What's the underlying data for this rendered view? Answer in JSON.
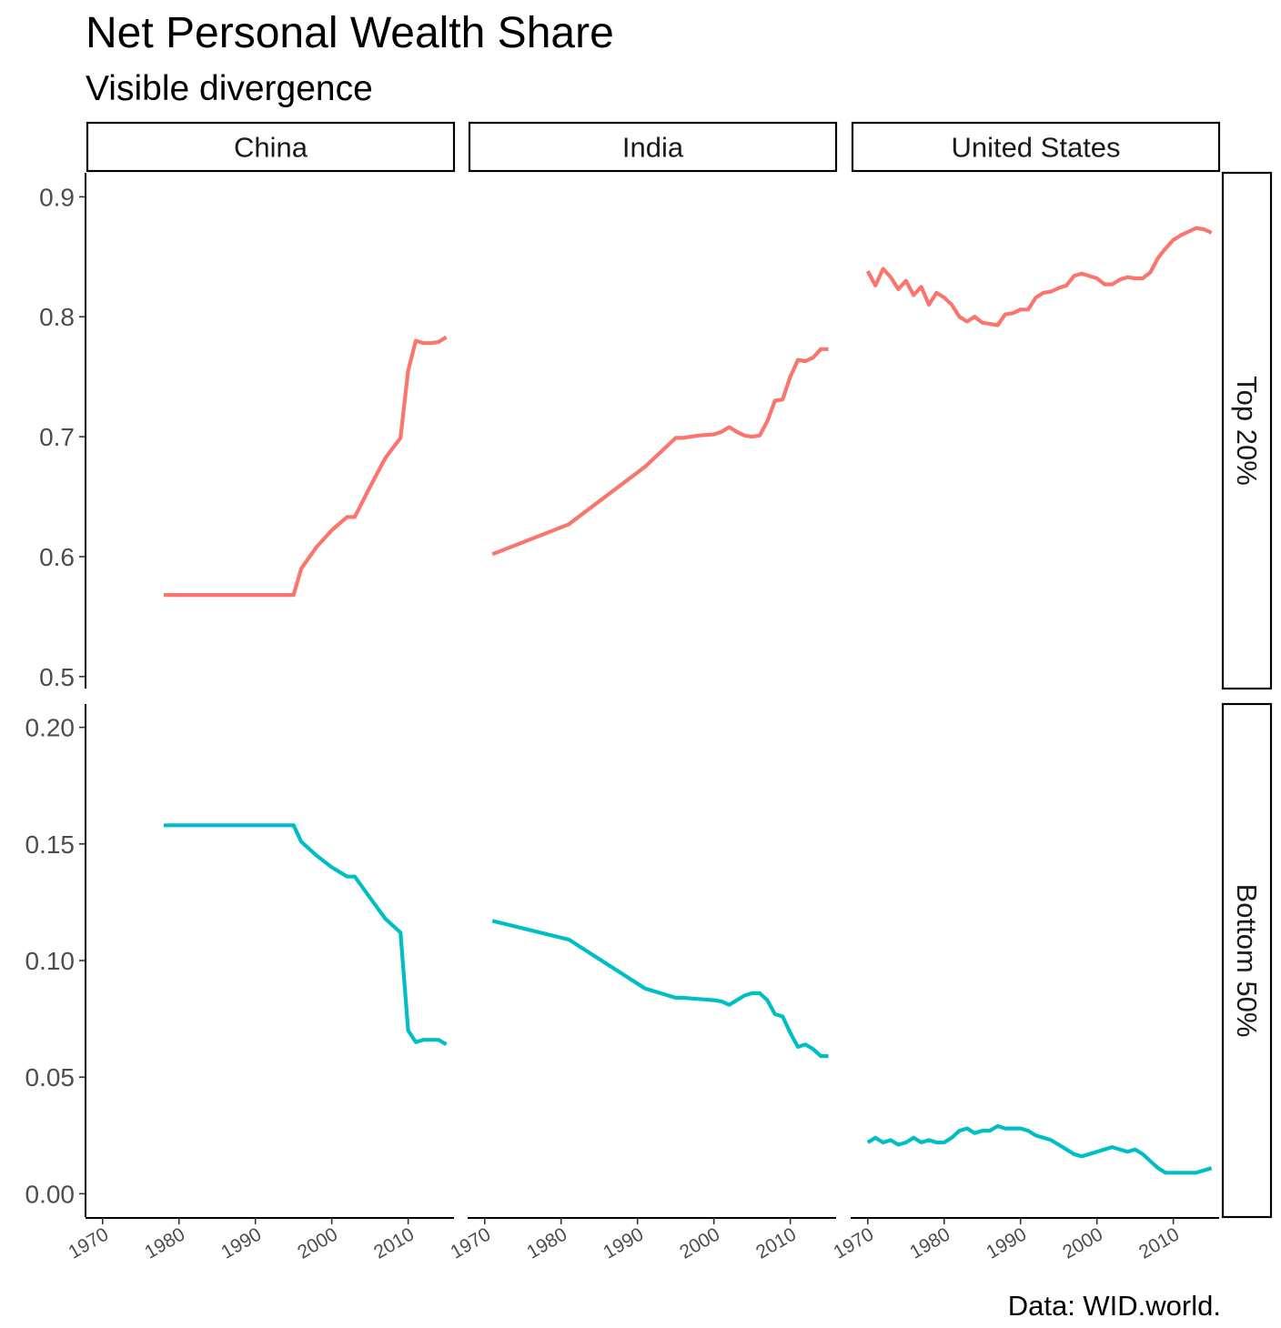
{
  "chart_data": {
    "type": "line",
    "title": "Net Personal Wealth Share",
    "subtitle": "Visible divergence",
    "caption": "Data: WID.world.",
    "columns": [
      "China",
      "India",
      "United States"
    ],
    "rows": [
      "Top 20%",
      "Bottom 50%"
    ],
    "x_range": [
      1968,
      2016
    ],
    "x_ticks": [
      "1970",
      "1980",
      "1990",
      "2000",
      "2010"
    ],
    "row_axes": [
      {
        "ylim": [
          0.49,
          0.92
        ],
        "ticks": [
          "0.5",
          "0.6",
          "0.7",
          "0.8",
          "0.9"
        ],
        "tick_values": [
          0.5,
          0.6,
          0.7,
          0.8,
          0.9
        ]
      },
      {
        "ylim": [
          -0.01,
          0.21
        ],
        "ticks": [
          "0.00",
          "0.05",
          "0.10",
          "0.15",
          "0.20"
        ],
        "tick_values": [
          0.0,
          0.05,
          0.1,
          0.15,
          0.2
        ]
      }
    ],
    "colors": {
      "Top 20%": "#F8766D",
      "Bottom 50%": "#00BFC4"
    },
    "series": [
      {
        "column": "China",
        "row": "Top 20%",
        "x": [
          1978,
          1995,
          1996,
          1998,
          2000,
          2002,
          2003,
          2005,
          2007,
          2009,
          2010,
          2011,
          2012,
          2013,
          2014,
          2015
        ],
        "y": [
          0.568,
          0.568,
          0.59,
          0.608,
          0.622,
          0.633,
          0.633,
          0.658,
          0.682,
          0.699,
          0.755,
          0.78,
          0.778,
          0.778,
          0.779,
          0.783
        ]
      },
      {
        "column": "India",
        "row": "Top 20%",
        "x": [
          1971,
          1981,
          1991,
          1995,
          1996,
          1998,
          2000,
          2001,
          2002,
          2003,
          2004,
          2005,
          2006,
          2007,
          2008,
          2009,
          2010,
          2011,
          2012,
          2013,
          2014,
          2015
        ],
        "y": [
          0.602,
          0.627,
          0.675,
          0.699,
          0.699,
          0.701,
          0.702,
          0.704,
          0.708,
          0.704,
          0.701,
          0.7,
          0.701,
          0.713,
          0.73,
          0.731,
          0.75,
          0.764,
          0.763,
          0.766,
          0.773,
          0.773
        ]
      },
      {
        "column": "United States",
        "row": "Top 20%",
        "x": [
          1970,
          1971,
          1972,
          1973,
          1974,
          1975,
          1976,
          1977,
          1978,
          1979,
          1980,
          1981,
          1982,
          1983,
          1984,
          1985,
          1986,
          1987,
          1988,
          1989,
          1990,
          1991,
          1992,
          1993,
          1994,
          1995,
          1996,
          1997,
          1998,
          1999,
          2000,
          2001,
          2002,
          2003,
          2004,
          2005,
          2006,
          2007,
          2008,
          2009,
          2010,
          2011,
          2012,
          2013,
          2014,
          2015
        ],
        "y": [
          0.838,
          0.826,
          0.84,
          0.833,
          0.823,
          0.83,
          0.818,
          0.825,
          0.81,
          0.82,
          0.816,
          0.81,
          0.8,
          0.796,
          0.8,
          0.795,
          0.794,
          0.793,
          0.802,
          0.803,
          0.806,
          0.806,
          0.816,
          0.82,
          0.821,
          0.824,
          0.826,
          0.834,
          0.836,
          0.834,
          0.832,
          0.827,
          0.827,
          0.831,
          0.833,
          0.832,
          0.832,
          0.837,
          0.849,
          0.857,
          0.864,
          0.868,
          0.871,
          0.874,
          0.873,
          0.87
        ]
      },
      {
        "column": "China",
        "row": "Bottom 50%",
        "x": [
          1978,
          1995,
          1996,
          1998,
          2000,
          2002,
          2003,
          2005,
          2007,
          2009,
          2010,
          2011,
          2012,
          2013,
          2014,
          2015
        ],
        "y": [
          0.158,
          0.158,
          0.151,
          0.145,
          0.14,
          0.136,
          0.136,
          0.127,
          0.118,
          0.112,
          0.07,
          0.065,
          0.066,
          0.066,
          0.066,
          0.064
        ]
      },
      {
        "column": "India",
        "row": "Bottom 50%",
        "x": [
          1971,
          1981,
          1991,
          1995,
          1996,
          1998,
          2000,
          2001,
          2002,
          2003,
          2004,
          2005,
          2006,
          2007,
          2008,
          2009,
          2010,
          2011,
          2012,
          2013,
          2014,
          2015
        ],
        "y": [
          0.117,
          0.109,
          0.088,
          0.084,
          0.084,
          0.0835,
          0.083,
          0.0825,
          0.081,
          0.083,
          0.085,
          0.086,
          0.086,
          0.083,
          0.077,
          0.076,
          0.069,
          0.063,
          0.064,
          0.062,
          0.059,
          0.059
        ]
      },
      {
        "column": "United States",
        "row": "Bottom 50%",
        "x": [
          1970,
          1971,
          1972,
          1973,
          1974,
          1975,
          1976,
          1977,
          1978,
          1979,
          1980,
          1981,
          1982,
          1983,
          1984,
          1985,
          1986,
          1987,
          1988,
          1989,
          1990,
          1991,
          1992,
          1993,
          1994,
          1995,
          1996,
          1997,
          1998,
          1999,
          2000,
          2001,
          2002,
          2003,
          2004,
          2005,
          2006,
          2007,
          2008,
          2009,
          2010,
          2011,
          2012,
          2013,
          2014,
          2015
        ],
        "y": [
          0.022,
          0.024,
          0.022,
          0.023,
          0.021,
          0.022,
          0.024,
          0.022,
          0.023,
          0.022,
          0.022,
          0.024,
          0.027,
          0.028,
          0.026,
          0.027,
          0.027,
          0.029,
          0.028,
          0.028,
          0.028,
          0.027,
          0.025,
          0.024,
          0.023,
          0.021,
          0.019,
          0.017,
          0.016,
          0.017,
          0.018,
          0.019,
          0.02,
          0.019,
          0.018,
          0.019,
          0.017,
          0.014,
          0.011,
          0.009,
          0.009,
          0.009,
          0.009,
          0.009,
          0.01,
          0.011
        ]
      }
    ]
  }
}
